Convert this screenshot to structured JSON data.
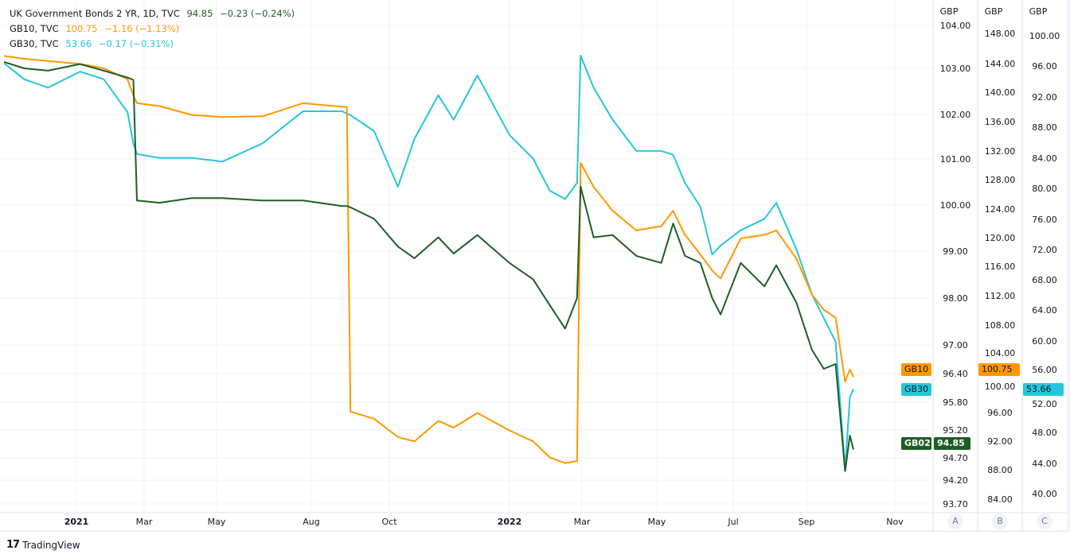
{
  "legend": {
    "main": {
      "title": "UK Government Bonds 2 YR, 1D, TVC",
      "price": "94.85",
      "change": "−0.23 (−0.24%)"
    },
    "gb10": {
      "title": "GB10, TVC",
      "price": "100.75",
      "change": "−1.16 (−1.13%)"
    },
    "gb30": {
      "title": "GB30, TVC",
      "price": "53.66",
      "change": "−0.17 (−0.31%)"
    }
  },
  "badges": {
    "gb10": {
      "label": "GB10",
      "price": "100.75"
    },
    "gb30": {
      "label": "GB30",
      "price": "53.66"
    },
    "gb02": {
      "label": "GB02",
      "price": "94.85"
    }
  },
  "axis_buttons": [
    "A",
    "B",
    "C"
  ],
  "footer": {
    "brand": "TradingView"
  },
  "colors": {
    "gb02": "#1e5e24",
    "gb10": "#ff9800",
    "gb30": "#26c6da",
    "grid": "#f0f3fa",
    "axis_text": "#131722"
  },
  "chart_data": {
    "type": "line",
    "title": "",
    "grid": true,
    "legend_placement": "top-left",
    "x_ticks": [
      "2021",
      "Mar",
      "May",
      "Aug",
      "Oct",
      "2022",
      "Mar",
      "May",
      "Jul",
      "Sep",
      "Nov"
    ],
    "y_axes": [
      {
        "id": "A",
        "unit": "GBP",
        "ticks": [
          "104.00",
          "103.00",
          "102.00",
          "101.00",
          "100.00",
          "99.00",
          "98.00",
          "97.00",
          "96.40",
          "95.80",
          "95.20",
          "94.70",
          "94.20",
          "93.70"
        ]
      },
      {
        "id": "B",
        "unit": "GBP",
        "ticks": [
          "148.00",
          "144.00",
          "140.00",
          "136.00",
          "132.00",
          "128.00",
          "124.00",
          "120.00",
          "116.00",
          "112.00",
          "108.00",
          "104.00",
          "100.00",
          "96.00",
          "92.00",
          "88.00",
          "84.00"
        ]
      },
      {
        "id": "C",
        "unit": "GBP",
        "ticks": [
          "100.00",
          "96.00",
          "92.00",
          "88.00",
          "84.00",
          "80.00",
          "76.00",
          "72.00",
          "68.00",
          "64.00",
          "60.00",
          "56.00",
          "52.00",
          "48.00",
          "44.00",
          "40.00"
        ]
      }
    ],
    "x": [
      "2020-11-01",
      "2020-11-18",
      "2020-12-08",
      "2021-01-04",
      "2021-01-24",
      "2021-02-13",
      "2021-02-18",
      "2021-02-21",
      "2021-03-12",
      "2021-04-08",
      "2021-05-04",
      "2021-06-07",
      "2021-07-11",
      "2021-08-13",
      "2021-08-17",
      "2021-08-20",
      "2021-09-09",
      "2021-09-29",
      "2021-10-13",
      "2021-11-02",
      "2021-11-15",
      "2021-12-05",
      "2022-01-01",
      "2022-01-21",
      "2022-02-04",
      "2022-02-17",
      "2022-02-27",
      "2022-03-02",
      "2022-03-13",
      "2022-03-29",
      "2022-04-18",
      "2022-05-09",
      "2022-05-19",
      "2022-05-29",
      "2022-06-11",
      "2022-06-21",
      "2022-06-28",
      "2022-07-15",
      "2022-08-04",
      "2022-08-14",
      "2022-08-31",
      "2022-09-13",
      "2022-09-23",
      "2022-10-03",
      "2022-10-11",
      "2022-10-15",
      "2022-10-18"
    ],
    "series": [
      {
        "name": "GB02",
        "axis": "A",
        "values": [
          103.15,
          103.0,
          102.95,
          103.1,
          102.95,
          102.8,
          102.75,
          100.1,
          100.05,
          100.15,
          100.15,
          100.1,
          100.1,
          99.98,
          99.98,
          99.95,
          99.7,
          99.1,
          98.85,
          99.3,
          98.95,
          99.35,
          98.75,
          98.4,
          97.85,
          97.35,
          98.0,
          100.4,
          99.3,
          99.35,
          98.9,
          98.75,
          99.6,
          98.9,
          98.75,
          98.0,
          97.65,
          98.75,
          98.25,
          98.7,
          97.9,
          96.9,
          96.5,
          96.6,
          94.4,
          95.1,
          94.85
        ]
      },
      {
        "name": "GB10",
        "axis": "B",
        "values": [
          144.9,
          144.5,
          144.2,
          143.8,
          143.2,
          141.7,
          139.5,
          138.4,
          138.0,
          136.8,
          136.5,
          136.6,
          138.4,
          137.9,
          137.9,
          96.0,
          95.0,
          92.5,
          91.9,
          94.7,
          93.8,
          95.8,
          93.4,
          91.9,
          89.7,
          88.9,
          89.2,
          130.2,
          126.9,
          123.6,
          120.9,
          121.5,
          123.6,
          120.3,
          117.6,
          115.4,
          114.3,
          119.8,
          120.3,
          120.9,
          117.0,
          112.1,
          110.0,
          108.9,
          100.1,
          101.8,
          100.75
        ]
      },
      {
        "name": "GB30",
        "axis": "C",
        "values": [
          96.4,
          94.3,
          93.2,
          95.3,
          94.3,
          90.0,
          85.9,
          84.5,
          84.0,
          84.0,
          83.5,
          85.9,
          90.1,
          90.1,
          89.8,
          89.6,
          87.5,
          80.2,
          86.5,
          92.2,
          89.0,
          94.8,
          87.0,
          83.9,
          79.7,
          78.6,
          80.7,
          97.4,
          93.2,
          89.0,
          84.9,
          84.9,
          84.4,
          80.7,
          77.6,
          71.3,
          72.5,
          74.5,
          76.0,
          78.1,
          72.0,
          66.1,
          63.0,
          59.9,
          43.2,
          52.6,
          53.66
        ]
      }
    ]
  }
}
